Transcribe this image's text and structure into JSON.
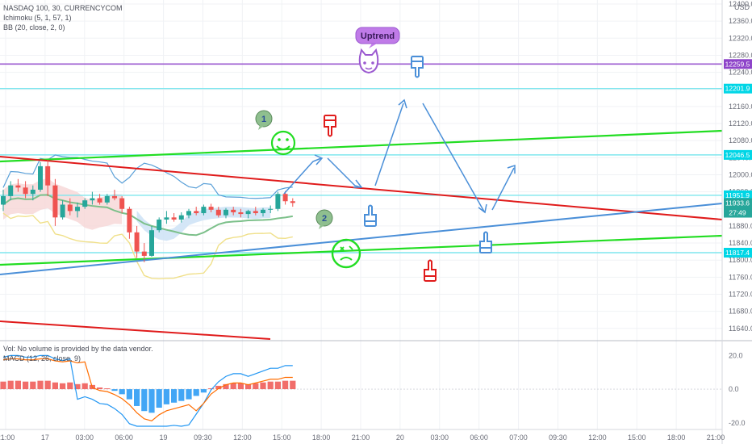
{
  "legend": {
    "symbol": "NASDAQ 100, 30, CURRENCYCOM",
    "ichimoku": "Ichimoku (5, 1, 57, 1)",
    "bb": "BB (20, close, 2, 0)",
    "vol": "Vol: No volume is provided by the data vendor.",
    "macd": "MACD (12, 26, close, 9)"
  },
  "currency_label": "USD",
  "price_tags": [
    {
      "value": "12259.5",
      "color": "#8e44c9",
      "price": 12259.5
    },
    {
      "value": "12201.9",
      "color": "#00d6e6",
      "price": 12201.9
    },
    {
      "value": "12046.5",
      "color": "#00d6e6",
      "price": 12046.5
    },
    {
      "value": "11951.9",
      "color": "#00d6e6",
      "price": 11951.9
    },
    {
      "value": "11933.6",
      "color": "#26a69a",
      "price": 11933.6
    },
    {
      "value": "27:49",
      "color": "#26a69a",
      "price": 11911
    },
    {
      "value": "11817.4",
      "color": "#00d6e6",
      "price": 11817.4
    }
  ],
  "annotations": {
    "uptrend": "Uptrend",
    "note1": "1",
    "note2": "2"
  },
  "colors": {
    "bull": "#26a69a",
    "bear": "#ef5350",
    "trend_green": "#22dd22",
    "trend_red": "#e01b1b",
    "trend_blue": "#4a8fd8",
    "level_cyan": "#7fe6ee",
    "level_purple": "#9b59d0"
  },
  "chart_data": [
    {
      "type": "candlestick",
      "title": "NASDAQ 100, 30, CURRENCYCOM",
      "ylabel": "USD",
      "ylim": [
        11615,
        12400
      ],
      "y_ticks": [
        12400,
        12360,
        12320,
        12280,
        12240,
        12200,
        12160,
        12120,
        12080,
        12040,
        12000,
        11960,
        11920,
        11880,
        11840,
        11800,
        11760,
        11720,
        11680,
        11640
      ],
      "x_ticks": [
        "21:00",
        "17",
        "03:00",
        "06:00",
        "19",
        "09:30",
        "12:00",
        "15:00",
        "18:00",
        "21:00",
        "20",
        "03:00",
        "06:00",
        "07:00",
        "09:30",
        "12:00",
        "15:00",
        "18:00",
        "21:00"
      ],
      "horizontal_levels": [
        12259.5,
        12201.9,
        12046.5,
        11951.9,
        11817.4
      ],
      "last_price": 11933.6,
      "candles": [
        [
          11930,
          11965,
          11915,
          11950
        ],
        [
          11950,
          11985,
          11940,
          11975
        ],
        [
          11975,
          11990,
          11960,
          11970
        ],
        [
          11970,
          11985,
          11945,
          11955
        ],
        [
          11955,
          11975,
          11940,
          11965
        ],
        [
          11965,
          12030,
          11960,
          12020
        ],
        [
          12020,
          12035,
          11950,
          11975
        ],
        [
          11975,
          11990,
          11880,
          11900
        ],
        [
          11900,
          11940,
          11895,
          11930
        ],
        [
          11930,
          11945,
          11905,
          11915
        ],
        [
          11915,
          11935,
          11900,
          11925
        ],
        [
          11925,
          11945,
          11920,
          11940
        ],
        [
          11940,
          11960,
          11930,
          11945
        ],
        [
          11945,
          11955,
          11930,
          11935
        ],
        [
          11935,
          11955,
          11930,
          11950
        ],
        [
          11950,
          11965,
          11940,
          11945
        ],
        [
          11945,
          11950,
          11910,
          11920
        ],
        [
          11920,
          11925,
          11850,
          11865
        ],
        [
          11865,
          11880,
          11805,
          11820
        ],
        [
          11820,
          11840,
          11795,
          11810
        ],
        [
          11810,
          11880,
          11808,
          11870
        ],
        [
          11870,
          11900,
          11865,
          11895
        ],
        [
          11895,
          11915,
          11885,
          11900
        ],
        [
          11900,
          11910,
          11890,
          11895
        ],
        [
          11895,
          11912,
          11888,
          11905
        ],
        [
          11905,
          11920,
          11898,
          11915
        ],
        [
          11915,
          11925,
          11905,
          11910
        ],
        [
          11910,
          11930,
          11905,
          11925
        ],
        [
          11925,
          11932,
          11912,
          11918
        ],
        [
          11918,
          11925,
          11900,
          11905
        ],
        [
          11905,
          11922,
          11898,
          11918
        ],
        [
          11918,
          11925,
          11905,
          11912
        ],
        [
          11912,
          11920,
          11900,
          11908
        ],
        [
          11908,
          11918,
          11898,
          11915
        ],
        [
          11915,
          11925,
          11905,
          11910
        ],
        [
          11910,
          11922,
          11902,
          11918
        ],
        [
          11918,
          11928,
          11910,
          11920
        ],
        [
          11920,
          11960,
          11915,
          11955
        ],
        [
          11955,
          11962,
          11930,
          11938
        ],
        [
          11938,
          11945,
          11925,
          11934
        ]
      ],
      "macd": {
        "ylim": [
          -22,
          24
        ],
        "y_ticks": [
          20.0,
          0.0,
          -20.0
        ],
        "histogram": [
          4.5,
          5,
          5,
          4.5,
          4.5,
          5,
          5,
          4,
          3.5,
          4,
          3,
          3.5,
          2.5,
          1,
          0.5,
          -1,
          -3,
          -6,
          -10,
          -13,
          -14,
          -11,
          -9,
          -8,
          -7,
          -6,
          -4,
          -2,
          0.5,
          2,
          3,
          3.5,
          3.5,
          3,
          3.5,
          4,
          4.5,
          4.5,
          5,
          5
        ]
      }
    }
  ]
}
